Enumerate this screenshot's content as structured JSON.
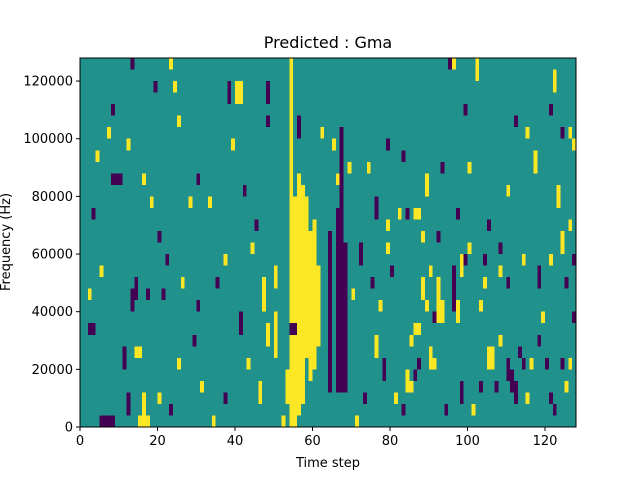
{
  "chart_data": {
    "type": "heatmap",
    "title": "Predicted : Gma",
    "xlabel": "Time step",
    "ylabel": "Frequency (Hz)",
    "xlim": [
      0,
      128
    ],
    "ylim": [
      0,
      128000
    ],
    "x_ticks": [
      0,
      20,
      40,
      60,
      80,
      100,
      120
    ],
    "x_tick_labels": [
      "0",
      "20",
      "40",
      "60",
      "80",
      "100",
      "120"
    ],
    "y_ticks": [
      0,
      20000,
      40000,
      60000,
      80000,
      100000,
      120000
    ],
    "y_tick_labels": [
      "0",
      "20000",
      "40000",
      "60000",
      "80000",
      "100000",
      "120000"
    ],
    "value_levels": [
      -1,
      0,
      1
    ],
    "colors": {
      "-1": "#440154",
      "0": "#21918c",
      "1": "#fde725"
    },
    "background_value": 0,
    "bin_height_hz": 4000,
    "cells": [
      {
        "t": 54,
        "f0": 0,
        "f1": 128000,
        "v": 1
      },
      {
        "t": 55,
        "f0": 0,
        "f1": 80000,
        "v": 1
      },
      {
        "t": 56,
        "f0": 4000,
        "f1": 88000,
        "v": 1
      },
      {
        "t": 57,
        "f0": 8000,
        "f1": 84000,
        "v": 1
      },
      {
        "t": 58,
        "f0": 24000,
        "f1": 80000,
        "v": 1
      },
      {
        "t": 59,
        "f0": 16000,
        "f1": 68000,
        "v": 1
      },
      {
        "t": 60,
        "f0": 20000,
        "f1": 72000,
        "v": 1
      },
      {
        "t": 61,
        "f0": 28000,
        "f1": 56000,
        "v": 1
      },
      {
        "t": 66,
        "f0": 12000,
        "f1": 76000,
        "v": -1
      },
      {
        "t": 67,
        "f0": 12000,
        "f1": 104000,
        "v": -1
      },
      {
        "t": 68,
        "f0": 12000,
        "f1": 64000,
        "v": -1
      },
      {
        "t": 64,
        "f0": 12000,
        "f1": 68000,
        "v": -1
      },
      {
        "t": 54,
        "f0": 32000,
        "f1": 36000,
        "v": -1
      },
      {
        "t": 55,
        "f0": 32000,
        "f1": 36000,
        "v": -1
      },
      {
        "t": 50,
        "f0": 24000,
        "f1": 40000,
        "v": 1
      },
      {
        "t": 50,
        "f0": 48000,
        "f1": 56000,
        "v": 1
      },
      {
        "t": 46,
        "f0": 8000,
        "f1": 16000,
        "v": 1
      },
      {
        "t": 47,
        "f0": 40000,
        "f1": 52000,
        "v": 1
      },
      {
        "t": 48,
        "f0": 28000,
        "f1": 36000,
        "v": 1
      },
      {
        "t": 52,
        "f0": 0,
        "f1": 4000,
        "v": 1
      },
      {
        "t": 53,
        "f0": 8000,
        "f1": 20000,
        "v": 1
      },
      {
        "t": 5,
        "f0": 0,
        "f1": 4000,
        "v": -1
      },
      {
        "t": 6,
        "f0": 0,
        "f1": 4000,
        "v": -1
      },
      {
        "t": 7,
        "f0": 0,
        "f1": 4000,
        "v": -1
      },
      {
        "t": 8,
        "f0": 0,
        "f1": 4000,
        "v": -1
      },
      {
        "t": 3,
        "f0": 32000,
        "f1": 36000,
        "v": -1
      },
      {
        "t": 2,
        "f0": 32000,
        "f1": 36000,
        "v": -1
      },
      {
        "t": 8,
        "f0": 84000,
        "f1": 88000,
        "v": -1
      },
      {
        "t": 9,
        "f0": 84000,
        "f1": 88000,
        "v": -1
      },
      {
        "t": 14,
        "f0": 44000,
        "f1": 52000,
        "v": -1
      },
      {
        "t": 17,
        "f0": 44000,
        "f1": 48000,
        "v": -1
      },
      {
        "t": 21,
        "f0": 44000,
        "f1": 48000,
        "v": -1
      },
      {
        "t": 11,
        "f0": 20000,
        "f1": 28000,
        "v": -1
      },
      {
        "t": 12,
        "f0": 4000,
        "f1": 12000,
        "v": -1
      },
      {
        "t": 15,
        "f0": 0,
        "f1": 4000,
        "v": 1
      },
      {
        "t": 16,
        "f0": 0,
        "f1": 12000,
        "v": 1
      },
      {
        "t": 17,
        "f0": 0,
        "f1": 4000,
        "v": 1
      },
      {
        "t": 14,
        "f0": 24000,
        "f1": 28000,
        "v": 1
      },
      {
        "t": 15,
        "f0": 24000,
        "f1": 28000,
        "v": 1
      },
      {
        "t": 13,
        "f0": 124000,
        "f1": 128000,
        "v": -1
      },
      {
        "t": 19,
        "f0": 116000,
        "f1": 120000,
        "v": -1
      },
      {
        "t": 23,
        "f0": 124000,
        "f1": 128000,
        "v": 1
      },
      {
        "t": 24,
        "f0": 116000,
        "f1": 120000,
        "v": 1
      },
      {
        "t": 25,
        "f0": 104000,
        "f1": 108000,
        "v": 1
      },
      {
        "t": 38,
        "f0": 112000,
        "f1": 120000,
        "v": -1
      },
      {
        "t": 40,
        "f0": 112000,
        "f1": 120000,
        "v": 1
      },
      {
        "t": 41,
        "f0": 112000,
        "f1": 120000,
        "v": 1
      },
      {
        "t": 48,
        "f0": 112000,
        "f1": 120000,
        "v": -1
      },
      {
        "t": 48,
        "f0": 104000,
        "f1": 108000,
        "v": -1
      },
      {
        "t": 56,
        "f0": 100000,
        "f1": 108000,
        "v": -1
      },
      {
        "t": 62,
        "f0": 100000,
        "f1": 104000,
        "v": 1
      },
      {
        "t": 65,
        "f0": 96000,
        "f1": 100000,
        "v": 1
      },
      {
        "t": 66,
        "f0": 84000,
        "f1": 88000,
        "v": 1
      },
      {
        "t": 69,
        "f0": 88000,
        "f1": 92000,
        "v": 1
      },
      {
        "t": 74,
        "f0": 88000,
        "f1": 92000,
        "v": 1
      },
      {
        "t": 76,
        "f0": 72000,
        "f1": 80000,
        "v": -1
      },
      {
        "t": 79,
        "f0": 68000,
        "f1": 72000,
        "v": 1
      },
      {
        "t": 82,
        "f0": 72000,
        "f1": 76000,
        "v": 1
      },
      {
        "t": 84,
        "f0": 72000,
        "f1": 76000,
        "v": -1
      },
      {
        "t": 86,
        "f0": 72000,
        "f1": 76000,
        "v": 1
      },
      {
        "t": 87,
        "f0": 72000,
        "f1": 76000,
        "v": 1
      },
      {
        "t": 88,
        "f0": 64000,
        "f1": 68000,
        "v": 1
      },
      {
        "t": 89,
        "f0": 80000,
        "f1": 88000,
        "v": 1
      },
      {
        "t": 90,
        "f0": 52000,
        "f1": 56000,
        "v": 1
      },
      {
        "t": 91,
        "f0": 36000,
        "f1": 40000,
        "v": -1
      },
      {
        "t": 92,
        "f0": 36000,
        "f1": 52000,
        "v": 1
      },
      {
        "t": 93,
        "f0": 36000,
        "f1": 44000,
        "v": 1
      },
      {
        "t": 88,
        "f0": 44000,
        "f1": 52000,
        "v": 1
      },
      {
        "t": 89,
        "f0": 40000,
        "f1": 44000,
        "v": 1
      },
      {
        "t": 87,
        "f0": 32000,
        "f1": 36000,
        "v": 1
      },
      {
        "t": 86,
        "f0": 32000,
        "f1": 36000,
        "v": 1
      },
      {
        "t": 85,
        "f0": 28000,
        "f1": 32000,
        "v": 1
      },
      {
        "t": 86,
        "f0": 16000,
        "f1": 20000,
        "v": -1
      },
      {
        "t": 87,
        "f0": 20000,
        "f1": 24000,
        "v": -1
      },
      {
        "t": 84,
        "f0": 12000,
        "f1": 20000,
        "v": 1
      },
      {
        "t": 85,
        "f0": 12000,
        "f1": 16000,
        "v": 1
      },
      {
        "t": 90,
        "f0": 20000,
        "f1": 28000,
        "v": 1
      },
      {
        "t": 91,
        "f0": 20000,
        "f1": 24000,
        "v": 1
      },
      {
        "t": 96,
        "f0": 40000,
        "f1": 56000,
        "v": -1
      },
      {
        "t": 97,
        "f0": 36000,
        "f1": 44000,
        "v": 1
      },
      {
        "t": 98,
        "f0": 52000,
        "f1": 60000,
        "v": 1
      },
      {
        "t": 99,
        "f0": 56000,
        "f1": 60000,
        "v": -1
      },
      {
        "t": 100,
        "f0": 60000,
        "f1": 64000,
        "v": 1
      },
      {
        "t": 103,
        "f0": 40000,
        "f1": 44000,
        "v": 1
      },
      {
        "t": 104,
        "f0": 56000,
        "f1": 60000,
        "v": -1
      },
      {
        "t": 105,
        "f0": 20000,
        "f1": 28000,
        "v": 1
      },
      {
        "t": 106,
        "f0": 20000,
        "f1": 28000,
        "v": 1
      },
      {
        "t": 107,
        "f0": 12000,
        "f1": 16000,
        "v": -1
      },
      {
        "t": 108,
        "f0": 28000,
        "f1": 32000,
        "v": 1
      },
      {
        "t": 110,
        "f0": 16000,
        "f1": 24000,
        "v": -1
      },
      {
        "t": 111,
        "f0": 12000,
        "f1": 20000,
        "v": -1
      },
      {
        "t": 112,
        "f0": 8000,
        "f1": 16000,
        "v": -1
      },
      {
        "t": 113,
        "f0": 24000,
        "f1": 28000,
        "v": -1
      },
      {
        "t": 114,
        "f0": 20000,
        "f1": 24000,
        "v": -1
      },
      {
        "t": 115,
        "f0": 8000,
        "f1": 12000,
        "v": 1
      },
      {
        "t": 116,
        "f0": 20000,
        "f1": 24000,
        "v": 1
      },
      {
        "t": 118,
        "f0": 28000,
        "f1": 32000,
        "v": -1
      },
      {
        "t": 119,
        "f0": 36000,
        "f1": 40000,
        "v": 1
      },
      {
        "t": 120,
        "f0": 20000,
        "f1": 24000,
        "v": -1
      },
      {
        "t": 121,
        "f0": 8000,
        "f1": 12000,
        "v": -1
      },
      {
        "t": 122,
        "f0": 4000,
        "f1": 8000,
        "v": -1
      },
      {
        "t": 124,
        "f0": 20000,
        "f1": 24000,
        "v": -1
      },
      {
        "t": 125,
        "f0": 12000,
        "f1": 16000,
        "v": 1
      },
      {
        "t": 126,
        "f0": 20000,
        "f1": 24000,
        "v": 1
      },
      {
        "t": 127,
        "f0": 36000,
        "f1": 40000,
        "v": -1
      },
      {
        "t": 96,
        "f0": 124000,
        "f1": 128000,
        "v": 1
      },
      {
        "t": 102,
        "f0": 120000,
        "f1": 128000,
        "v": 1
      },
      {
        "t": 99,
        "f0": 108000,
        "f1": 112000,
        "v": -1
      },
      {
        "t": 95,
        "f0": 124000,
        "f1": 128000,
        "v": -1
      },
      {
        "t": 112,
        "f0": 104000,
        "f1": 108000,
        "v": -1
      },
      {
        "t": 115,
        "f0": 100000,
        "f1": 104000,
        "v": 1
      },
      {
        "t": 117,
        "f0": 88000,
        "f1": 96000,
        "v": 1
      },
      {
        "t": 121,
        "f0": 108000,
        "f1": 112000,
        "v": -1
      },
      {
        "t": 122,
        "f0": 116000,
        "f1": 124000,
        "v": 1
      },
      {
        "t": 124,
        "f0": 100000,
        "f1": 104000,
        "v": -1
      },
      {
        "t": 126,
        "f0": 100000,
        "f1": 104000,
        "v": 1
      },
      {
        "t": 127,
        "f0": 96000,
        "f1": 100000,
        "v": 1
      },
      {
        "t": 123,
        "f0": 76000,
        "f1": 84000,
        "v": 1
      },
      {
        "t": 124,
        "f0": 60000,
        "f1": 68000,
        "v": 1
      },
      {
        "t": 126,
        "f0": 68000,
        "f1": 72000,
        "v": 1
      },
      {
        "t": 125,
        "f0": 48000,
        "f1": 52000,
        "v": -1
      },
      {
        "t": 127,
        "f0": 56000,
        "f1": 60000,
        "v": -1
      },
      {
        "t": 121,
        "f0": 56000,
        "f1": 60000,
        "v": 1
      },
      {
        "t": 118,
        "f0": 48000,
        "f1": 56000,
        "v": -1
      },
      {
        "t": 114,
        "f0": 56000,
        "f1": 60000,
        "v": 1
      },
      {
        "t": 110,
        "f0": 48000,
        "f1": 52000,
        "v": -1
      },
      {
        "t": 108,
        "f0": 52000,
        "f1": 56000,
        "v": 1
      },
      {
        "t": 104,
        "f0": 48000,
        "f1": 52000,
        "v": 1
      },
      {
        "t": 2,
        "f0": 44000,
        "f1": 48000,
        "v": 1
      },
      {
        "t": 3,
        "f0": 72000,
        "f1": 76000,
        "v": -1
      },
      {
        "t": 4,
        "f0": 92000,
        "f1": 96000,
        "v": 1
      },
      {
        "t": 5,
        "f0": 52000,
        "f1": 56000,
        "v": 1
      },
      {
        "t": 7,
        "f0": 100000,
        "f1": 104000,
        "v": 1
      },
      {
        "t": 8,
        "f0": 108000,
        "f1": 112000,
        "v": -1
      },
      {
        "t": 10,
        "f0": 84000,
        "f1": 88000,
        "v": -1
      },
      {
        "t": 12,
        "f0": 96000,
        "f1": 100000,
        "v": 1
      },
      {
        "t": 13,
        "f0": 40000,
        "f1": 48000,
        "v": -1
      },
      {
        "t": 16,
        "f0": 84000,
        "f1": 88000,
        "v": 1
      },
      {
        "t": 18,
        "f0": 76000,
        "f1": 80000,
        "v": 1
      },
      {
        "t": 20,
        "f0": 64000,
        "f1": 68000,
        "v": -1
      },
      {
        "t": 22,
        "f0": 56000,
        "f1": 60000,
        "v": -1
      },
      {
        "t": 26,
        "f0": 48000,
        "f1": 52000,
        "v": 1
      },
      {
        "t": 28,
        "f0": 76000,
        "f1": 80000,
        "v": 1
      },
      {
        "t": 30,
        "f0": 84000,
        "f1": 88000,
        "v": -1
      },
      {
        "t": 33,
        "f0": 76000,
        "f1": 80000,
        "v": 1
      },
      {
        "t": 35,
        "f0": 48000,
        "f1": 52000,
        "v": -1
      },
      {
        "t": 37,
        "f0": 56000,
        "f1": 60000,
        "v": 1
      },
      {
        "t": 39,
        "f0": 96000,
        "f1": 100000,
        "v": 1
      },
      {
        "t": 42,
        "f0": 80000,
        "f1": 84000,
        "v": -1
      },
      {
        "t": 44,
        "f0": 60000,
        "f1": 64000,
        "v": 1
      },
      {
        "t": 45,
        "f0": 68000,
        "f1": 72000,
        "v": -1
      },
      {
        "t": 30,
        "f0": 40000,
        "f1": 44000,
        "v": -1
      },
      {
        "t": 31,
        "f0": 12000,
        "f1": 16000,
        "v": 1
      },
      {
        "t": 29,
        "f0": 28000,
        "f1": 32000,
        "v": -1
      },
      {
        "t": 25,
        "f0": 20000,
        "f1": 24000,
        "v": 1
      },
      {
        "t": 23,
        "f0": 4000,
        "f1": 8000,
        "v": -1
      },
      {
        "t": 20,
        "f0": 8000,
        "f1": 12000,
        "v": 1
      },
      {
        "t": 34,
        "f0": 0,
        "f1": 4000,
        "v": 1
      },
      {
        "t": 37,
        "f0": 8000,
        "f1": 12000,
        "v": -1
      },
      {
        "t": 41,
        "f0": 32000,
        "f1": 40000,
        "v": -1
      },
      {
        "t": 43,
        "f0": 20000,
        "f1": 24000,
        "v": 1
      },
      {
        "t": 71,
        "f0": 0,
        "f1": 4000,
        "v": 1
      },
      {
        "t": 73,
        "f0": 8000,
        "f1": 12000,
        "v": -1
      },
      {
        "t": 76,
        "f0": 24000,
        "f1": 32000,
        "v": 1
      },
      {
        "t": 78,
        "f0": 16000,
        "f1": 24000,
        "v": -1
      },
      {
        "t": 81,
        "f0": 8000,
        "f1": 12000,
        "v": 1
      },
      {
        "t": 83,
        "f0": 4000,
        "f1": 8000,
        "v": -1
      },
      {
        "t": 94,
        "f0": 4000,
        "f1": 8000,
        "v": -1
      },
      {
        "t": 98,
        "f0": 8000,
        "f1": 16000,
        "v": -1
      },
      {
        "t": 101,
        "f0": 4000,
        "f1": 8000,
        "v": 1
      },
      {
        "t": 103,
        "f0": 12000,
        "f1": 16000,
        "v": -1
      },
      {
        "t": 70,
        "f0": 44000,
        "f1": 48000,
        "v": 1
      },
      {
        "t": 72,
        "f0": 56000,
        "f1": 64000,
        "v": -1
      },
      {
        "t": 75,
        "f0": 48000,
        "f1": 52000,
        "v": -1
      },
      {
        "t": 77,
        "f0": 40000,
        "f1": 44000,
        "v": 1
      },
      {
        "t": 80,
        "f0": 52000,
        "f1": 56000,
        "v": -1
      },
      {
        "t": 79,
        "f0": 60000,
        "f1": 64000,
        "v": 1
      },
      {
        "t": 110,
        "f0": 80000,
        "f1": 84000,
        "v": 1
      },
      {
        "t": 105,
        "f0": 68000,
        "f1": 72000,
        "v": -1
      },
      {
        "t": 108,
        "f0": 60000,
        "f1": 64000,
        "v": -1
      },
      {
        "t": 100,
        "f0": 88000,
        "f1": 92000,
        "v": 1
      },
      {
        "t": 97,
        "f0": 72000,
        "f1": 76000,
        "v": -1
      },
      {
        "t": 93,
        "f0": 88000,
        "f1": 92000,
        "v": -1
      },
      {
        "t": 92,
        "f0": 64000,
        "f1": 68000,
        "v": -1
      },
      {
        "t": 83,
        "f0": 92000,
        "f1": 96000,
        "v": -1
      },
      {
        "t": 79,
        "f0": 96000,
        "f1": 100000,
        "v": -1
      }
    ]
  }
}
